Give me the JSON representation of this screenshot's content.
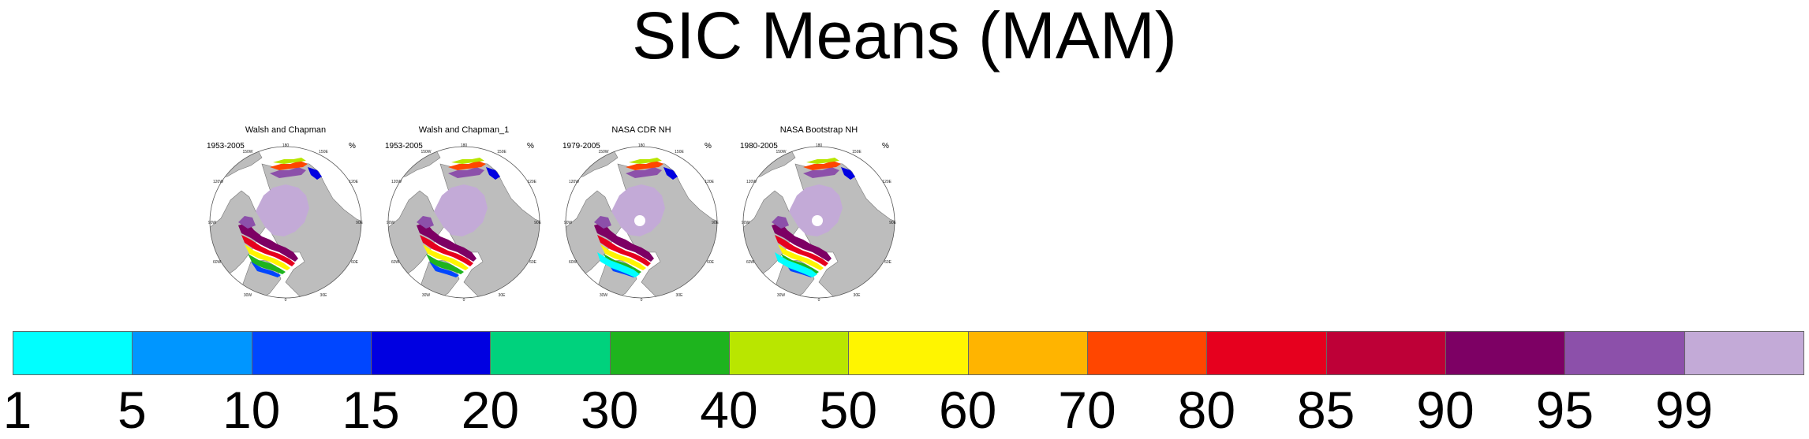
{
  "title": "SIC Means (MAM)",
  "panels": [
    {
      "title": "Walsh and Chapman",
      "period": "1953-2005",
      "units": "%",
      "pole_hole": false,
      "ice_style": "full"
    },
    {
      "title": "Walsh and Chapman_1",
      "period": "1953-2005",
      "units": "%",
      "pole_hole": false,
      "ice_style": "full"
    },
    {
      "title": "NASA CDR NH",
      "period": "1979-2005",
      "units": "%",
      "pole_hole": true,
      "ice_style": "satellite"
    },
    {
      "title": "NASA Bootstrap NH",
      "period": "1980-2005",
      "units": "%",
      "pole_hole": true,
      "ice_style": "satellite"
    }
  ],
  "map_ticks": {
    "top": "180",
    "upper_left": "150W",
    "upper_right": "150E",
    "left_upper": "120W",
    "right_upper": "120E",
    "left": "90W",
    "right": "90E",
    "left_lower": "60W",
    "right_lower": "60E",
    "lower_left": "30W",
    "lower_right": "30E",
    "bottom": "0"
  },
  "colors": {
    "land": "#bdbdbd",
    "ocean": "#ffffff",
    "outline": "#555555"
  },
  "colorbar": {
    "colors": [
      "#00ffff",
      "#0096ff",
      "#0046ff",
      "#0000e1",
      "#00d27d",
      "#1eb41e",
      "#b9e600",
      "#fff500",
      "#ffb400",
      "#ff4600",
      "#e6001e",
      "#be0037",
      "#7d0064",
      "#8c50aa",
      "#c3aad7"
    ],
    "labels": [
      "1",
      "5",
      "10",
      "15",
      "20",
      "30",
      "40",
      "50",
      "60",
      "70",
      "80",
      "85",
      "90",
      "95",
      "99"
    ]
  }
}
